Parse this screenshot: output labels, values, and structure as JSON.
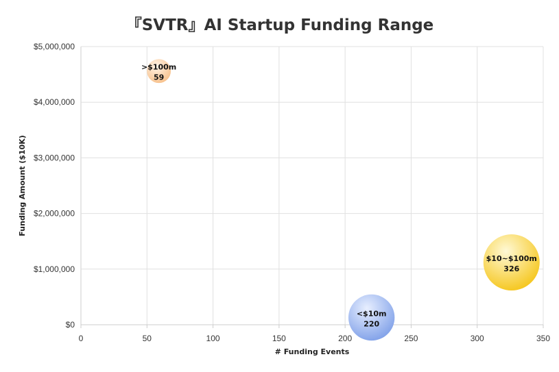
{
  "chart_data": {
    "type": "scatter",
    "subtype": "bubble",
    "title": "『SVTR』AI Startup Funding Range",
    "xlabel": "# Funding Events",
    "ylabel": "Funding Amount ($10K)",
    "xlim": [
      0,
      350
    ],
    "ylim": [
      0,
      5000000
    ],
    "x_ticks": [
      0,
      50,
      100,
      150,
      200,
      250,
      300,
      350
    ],
    "x_tick_labels": [
      "0",
      "50",
      "100",
      "150",
      "200",
      "250",
      "300",
      "350"
    ],
    "y_ticks": [
      0,
      1000000,
      2000000,
      3000000,
      4000000,
      5000000
    ],
    "y_tick_labels": [
      "$0",
      "$1,000,000",
      "$2,000,000",
      "$3,000,000",
      "$4,000,000",
      "$5,000,000"
    ],
    "grid": true,
    "points": [
      {
        "label": ">$100m",
        "x": 59,
        "y": 4560000,
        "size": 59,
        "color_light": "#fff3e6",
        "color_dark": "#f7c08a"
      },
      {
        "label": "$10~$100m",
        "x": 326,
        "y": 1120000,
        "size": 326,
        "color_light": "#fff9d6",
        "color_dark": "#f5c518"
      },
      {
        "label": "<$10m",
        "x": 220,
        "y": 130000,
        "size": 220,
        "color_light": "#e8efff",
        "color_dark": "#7e9fe8"
      }
    ]
  }
}
